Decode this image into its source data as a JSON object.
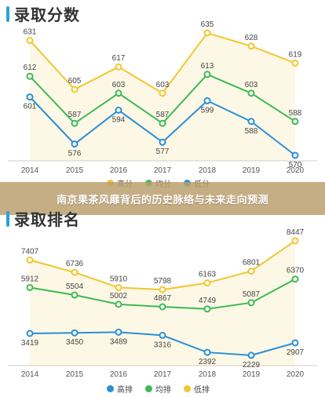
{
  "header": {
    "title_scores": "录取分数",
    "title_ranks": "录取排名",
    "banner": "南京果茶风靡背后的历史脉络与未来走向预测"
  },
  "colors": {
    "high": "#f2c62f",
    "mid": "#3cba54",
    "low": "#2a8fd8",
    "title_accent": "#2aa3d6"
  },
  "chart_data": [
    {
      "type": "line",
      "title": "录取分数",
      "categories": [
        "2014",
        "2015",
        "2016",
        "2017",
        "2018",
        "2019",
        "2020"
      ],
      "series": [
        {
          "name": "高分",
          "color": "#f2c62f",
          "values": [
            631,
            605,
            617,
            603,
            635,
            628,
            619
          ]
        },
        {
          "name": "均分",
          "color": "#3cba54",
          "values": [
            612,
            587,
            603,
            587,
            613,
            603,
            588
          ]
        },
        {
          "name": "低分",
          "color": "#2a8fd8",
          "values": [
            601,
            576,
            594,
            577,
            599,
            588,
            570
          ]
        }
      ],
      "ylim": [
        565,
        640
      ],
      "grid": false,
      "legend": "bottom-center"
    },
    {
      "type": "line",
      "title": "录取排名",
      "categories": [
        "2014",
        "2015",
        "2016",
        "2017",
        "2018",
        "2019",
        "2020"
      ],
      "series": [
        {
          "name": "高排",
          "color": "#2a8fd8",
          "values": [
            3419,
            3450,
            3489,
            3316,
            2392,
            2229,
            2907
          ]
        },
        {
          "name": "均排",
          "color": "#3cba54",
          "values": [
            5912,
            5504,
            5002,
            4867,
            4749,
            5087,
            6370
          ]
        },
        {
          "name": "低排",
          "color": "#f2c62f",
          "values": [
            7407,
            6736,
            5910,
            5798,
            6163,
            6801,
            8447
          ]
        }
      ],
      "ylim": [
        1500,
        9000
      ],
      "grid": false,
      "legend": "bottom-center"
    }
  ]
}
